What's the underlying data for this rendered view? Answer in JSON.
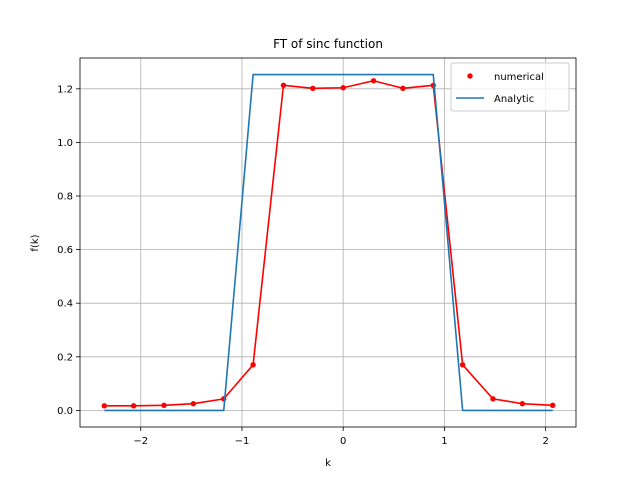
{
  "chart_data": {
    "type": "line",
    "title": "FT of sinc function",
    "xlabel": "k",
    "ylabel": "f(k)",
    "xlim": [
      -2.6,
      2.3
    ],
    "ylim": [
      -0.062,
      1.315
    ],
    "xticks": [
      -2,
      -1,
      0,
      1,
      2
    ],
    "xtick_labels": [
      "−2",
      "−1",
      "0",
      "1",
      "2"
    ],
    "yticks": [
      0.0,
      0.2,
      0.4,
      0.6,
      0.8,
      1.0,
      1.2
    ],
    "ytick_labels": [
      "0.0",
      "0.2",
      "0.4",
      "0.6",
      "0.8",
      "1.0",
      "1.2"
    ],
    "grid": true,
    "legend_position": "top-right",
    "series": [
      {
        "name": "numerical",
        "kind": "points-with-line",
        "color": "#ff0000",
        "x": [
          -2.36,
          -2.07,
          -1.77,
          -1.48,
          -1.18,
          -0.89,
          -0.59,
          -0.3,
          0.0,
          0.3,
          0.59,
          0.89,
          1.18,
          1.48,
          1.77,
          2.07
        ],
        "y": [
          0.017,
          0.017,
          0.019,
          0.025,
          0.043,
          0.17,
          1.213,
          1.202,
          1.204,
          1.23,
          1.202,
          1.213,
          0.17,
          0.043,
          0.025,
          0.019
        ]
      },
      {
        "name": "Analytic",
        "kind": "line",
        "color": "#1f77b4",
        "x": [
          -2.36,
          -1.18,
          -0.89,
          0.89,
          1.18,
          2.07
        ],
        "y": [
          0.0,
          0.0,
          1.253,
          1.253,
          0.0,
          0.0
        ]
      }
    ]
  }
}
